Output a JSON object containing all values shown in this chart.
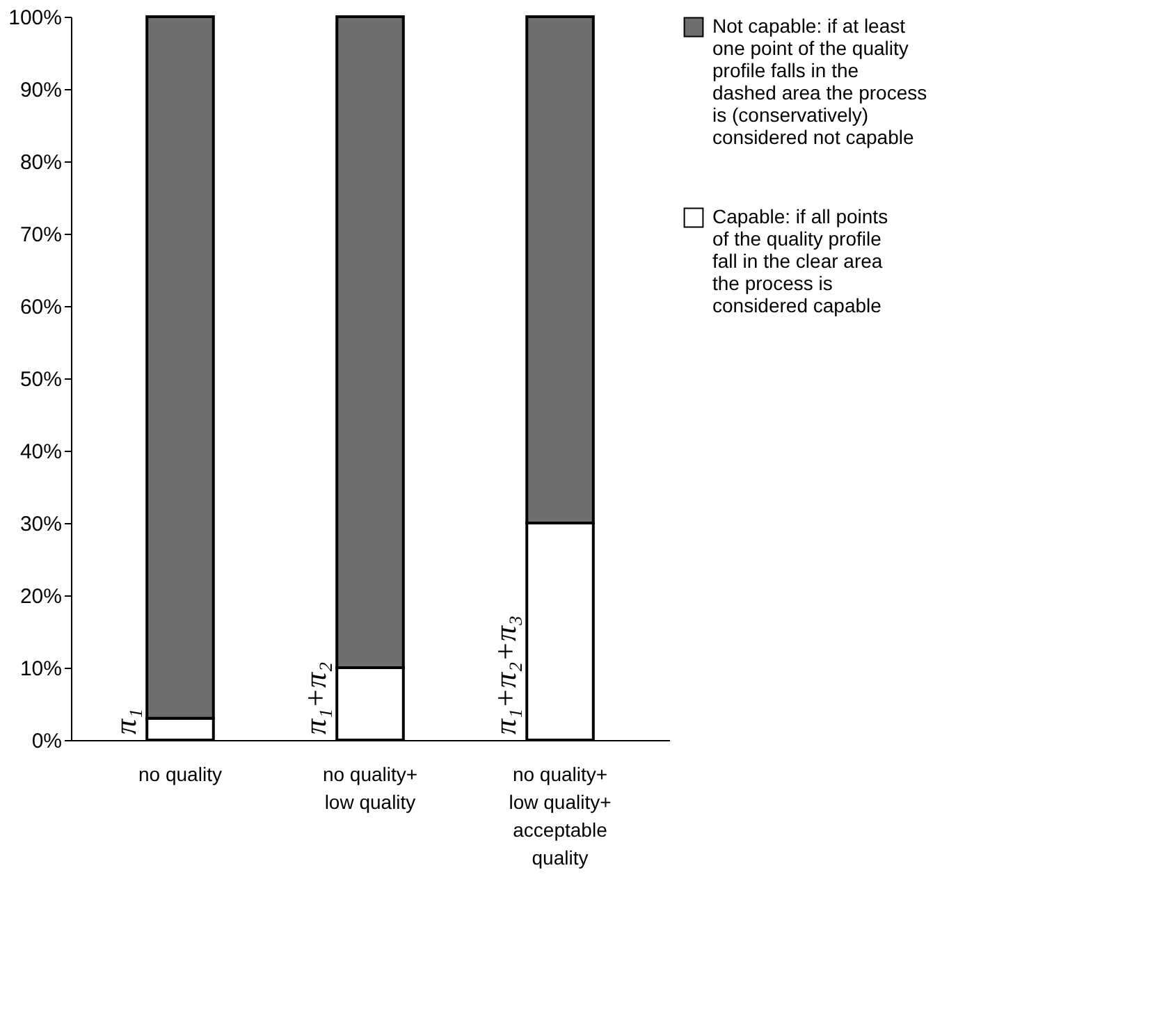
{
  "chart_data": {
    "type": "bar",
    "stacked": true,
    "categories": [
      "no quality",
      "no quality+ low quality",
      "no quality+ low quality+ acceptable quality"
    ],
    "series": [
      {
        "name": "Capable: if all points of the quality profile fall in the clear area the process is considered capable",
        "color": "#ffffff",
        "values": [
          3,
          10,
          30
        ]
      },
      {
        "name": "Not capable: if at least one point of the quality profile falls in the dashed area the process is (conservatively) considered not capable",
        "color": "#6e6e6e",
        "values": [
          97,
          90,
          70
        ]
      }
    ],
    "ylim": [
      0,
      100
    ],
    "yticks": [
      {
        "value": 0,
        "label": "0%"
      },
      {
        "value": 10,
        "label": "10%"
      },
      {
        "value": 20,
        "label": "20%"
      },
      {
        "value": 30,
        "label": "30%"
      },
      {
        "value": 40,
        "label": "40%"
      },
      {
        "value": 50,
        "label": "50%"
      },
      {
        "value": 60,
        "label": "60%"
      },
      {
        "value": 70,
        "label": "70%"
      },
      {
        "value": 80,
        "label": "80%"
      },
      {
        "value": 90,
        "label": "90%"
      },
      {
        "value": 100,
        "label": "100%"
      }
    ],
    "annotations": [
      {
        "text": "π₁",
        "x": "no quality",
        "y": 0
      },
      {
        "text": "π₁+π₂",
        "x": "no quality+ low quality",
        "y": 0
      },
      {
        "text": "π₁+π₂+π₃",
        "x": "no quality+ low quality+ acceptable quality",
        "y": 0
      }
    ],
    "grid": false,
    "legend": "right"
  }
}
